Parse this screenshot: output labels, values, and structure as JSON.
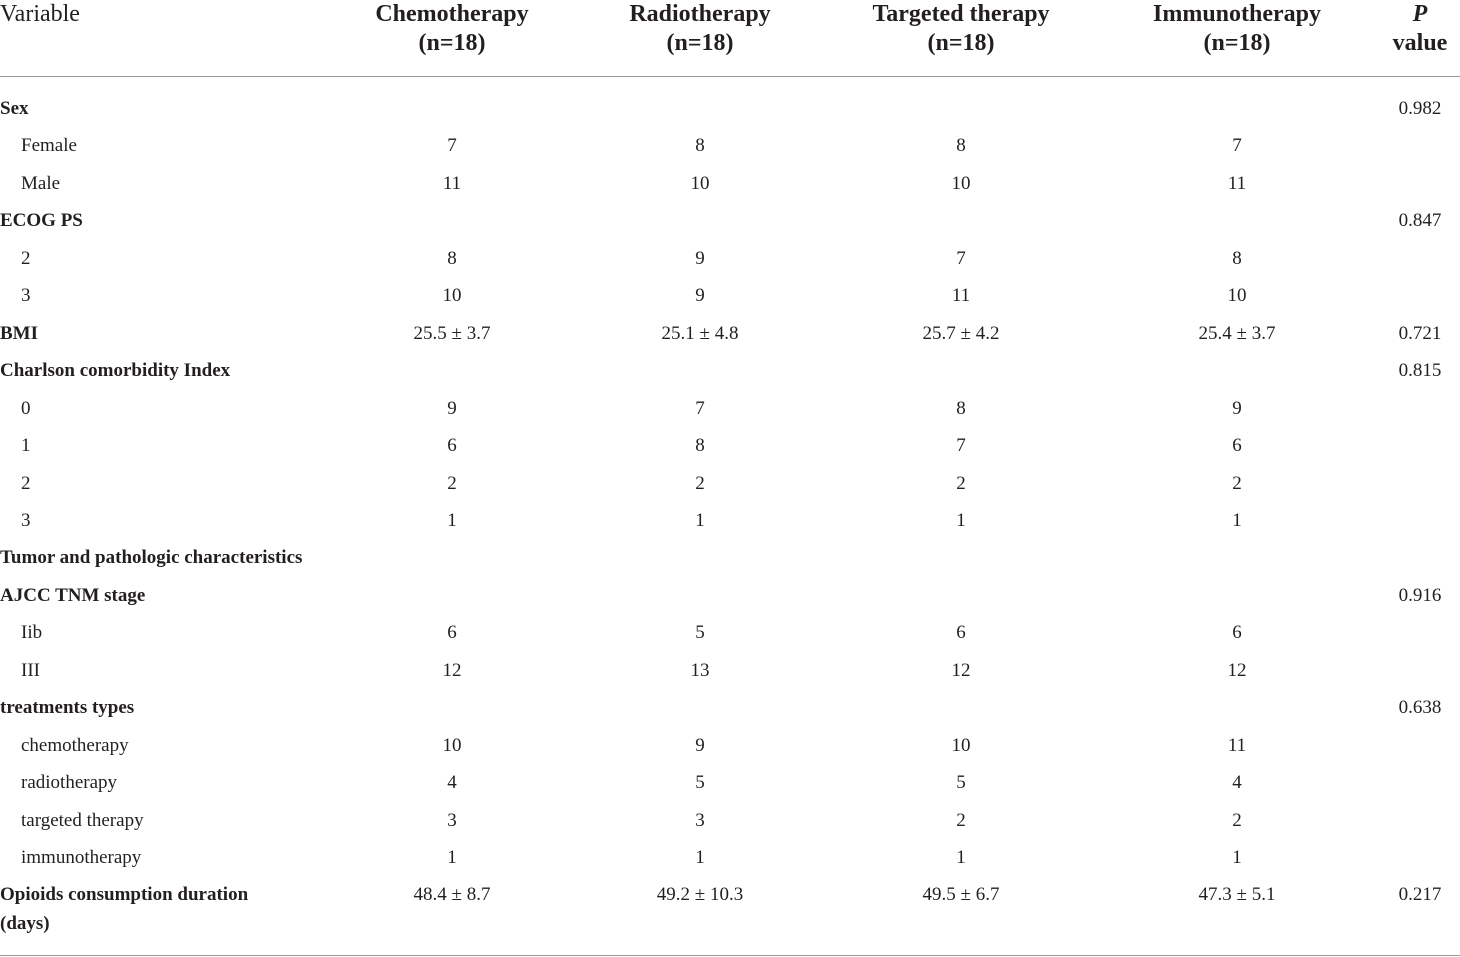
{
  "headers": {
    "variable": "Variable",
    "groups": [
      {
        "name": "Chemotherapy",
        "n": "(n=18)"
      },
      {
        "name": "Radiotherapy",
        "n": "(n=18)"
      },
      {
        "name": "Targeted therapy",
        "n": "(n=18)"
      },
      {
        "name": "Immunotherapy",
        "n": "(n=18)"
      }
    ],
    "p_symbol": "P",
    "p_word": "value"
  },
  "rows": [
    {
      "label": "Sex",
      "bold": true,
      "values": [
        "",
        "",
        "",
        ""
      ],
      "p": "0.982"
    },
    {
      "label": "Female",
      "bold": false,
      "values": [
        "7",
        "8",
        "8",
        "7"
      ],
      "p": ""
    },
    {
      "label": "Male",
      "bold": false,
      "values": [
        "11",
        "10",
        "10",
        "11"
      ],
      "p": ""
    },
    {
      "label": "ECOG PS",
      "bold": true,
      "values": [
        "",
        "",
        "",
        ""
      ],
      "p": "0.847"
    },
    {
      "label": "2",
      "bold": false,
      "values": [
        "8",
        "9",
        "7",
        "8"
      ],
      "p": ""
    },
    {
      "label": "3",
      "bold": false,
      "values": [
        "10",
        "9",
        "11",
        "10"
      ],
      "p": ""
    },
    {
      "label": "BMI",
      "bold": true,
      "values": [
        "25.5 ± 3.7",
        "25.1 ± 4.8",
        "25.7 ± 4.2",
        "25.4 ± 3.7"
      ],
      "p": "0.721"
    },
    {
      "label": "Charlson comorbidity Index",
      "bold": true,
      "values": [
        "",
        "",
        "",
        ""
      ],
      "p": "0.815"
    },
    {
      "label": "0",
      "bold": false,
      "values": [
        "9",
        "7",
        "8",
        "9"
      ],
      "p": ""
    },
    {
      "label": "1",
      "bold": false,
      "values": [
        "6",
        "8",
        "7",
        "6"
      ],
      "p": ""
    },
    {
      "label": "2",
      "bold": false,
      "values": [
        "2",
        "2",
        "2",
        "2"
      ],
      "p": ""
    },
    {
      "label": "3",
      "bold": false,
      "values": [
        "1",
        "1",
        "1",
        "1"
      ],
      "p": ""
    },
    {
      "label": "Tumor and pathologic characteristics",
      "bold": true,
      "values": [
        "",
        "",
        "",
        ""
      ],
      "p": ""
    },
    {
      "label": "AJCC TNM stage",
      "bold": true,
      "values": [
        "",
        "",
        "",
        ""
      ],
      "p": "0.916"
    },
    {
      "label": "Iib",
      "bold": false,
      "values": [
        "6",
        "5",
        "6",
        "6"
      ],
      "p": ""
    },
    {
      "label": "III",
      "bold": false,
      "values": [
        "12",
        "13",
        "12",
        "12"
      ],
      "p": ""
    },
    {
      "label": "treatments types",
      "bold": true,
      "values": [
        "",
        "",
        "",
        ""
      ],
      "p": "0.638"
    },
    {
      "label": "chemotherapy",
      "bold": false,
      "values": [
        "10",
        "9",
        "10",
        "11"
      ],
      "p": ""
    },
    {
      "label": "radiotherapy",
      "bold": false,
      "values": [
        "4",
        "5",
        "5",
        "4"
      ],
      "p": ""
    },
    {
      "label": "targeted therapy",
      "bold": false,
      "values": [
        "3",
        "3",
        "2",
        "2"
      ],
      "p": ""
    },
    {
      "label": "immunotherapy",
      "bold": false,
      "values": [
        "1",
        "1",
        "1",
        "1"
      ],
      "p": ""
    },
    {
      "label": "Opioids consumption duration",
      "label2": "(days)",
      "bold": true,
      "values": [
        "48.4 ± 8.7",
        "49.2 ± 10.3",
        "49.5 ± 6.7",
        "47.3 ± 5.1"
      ],
      "p": "0.217"
    }
  ]
}
